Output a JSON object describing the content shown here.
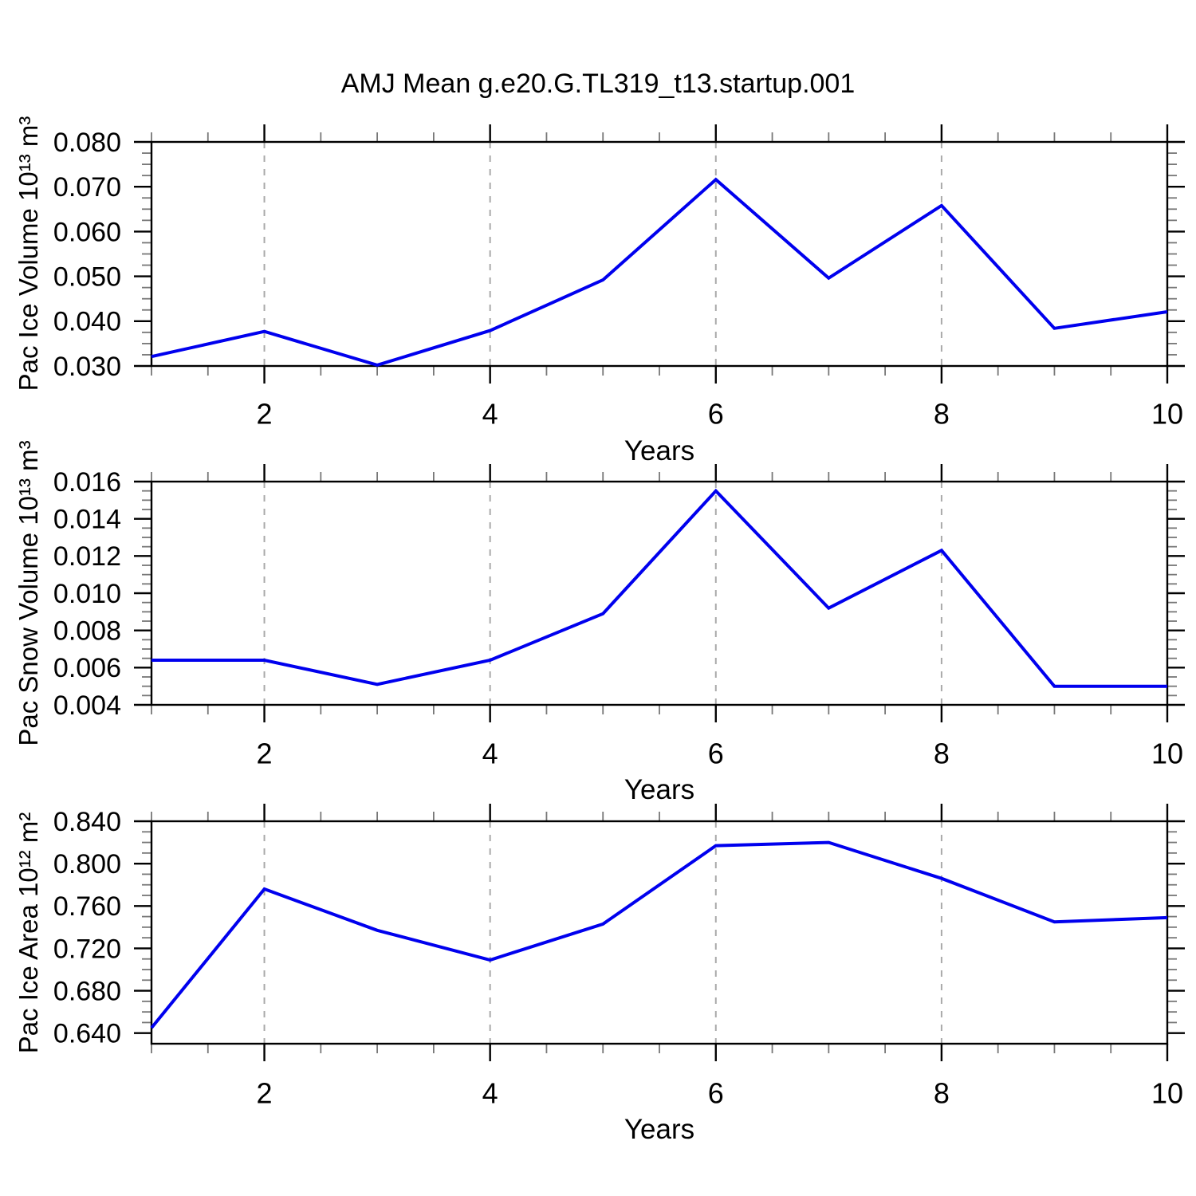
{
  "title": "AMJ Mean g.e20.G.TL319_t13.startup.001",
  "colors": {
    "line": "#0000EE",
    "grid": "#A9A9A9",
    "axis": "#000000",
    "minor_tick": "#777777"
  },
  "chart_data": [
    {
      "type": "line",
      "name": "pac-ice-volume",
      "ylabel": "Pac Ice Volume 10¹³ m³",
      "xlabel": "Years",
      "x": [
        1,
        2,
        3,
        4,
        5,
        6,
        7,
        8,
        9,
        10
      ],
      "values": [
        0.0321,
        0.0377,
        0.0302,
        0.0379,
        0.0492,
        0.0716,
        0.0496,
        0.0658,
        0.0384,
        0.0421
      ],
      "xlim": [
        1,
        10
      ],
      "ylim": [
        0.03,
        0.08
      ],
      "yticks": [
        "0.080",
        "0.070",
        "0.060",
        "0.050",
        "0.040",
        "0.030"
      ],
      "y_minor_step": 0.0025,
      "xticks": [
        2,
        4,
        6,
        8,
        10
      ],
      "xtick_labels": [
        "2",
        "4",
        "6",
        "8",
        "10"
      ],
      "x_minor_step": 0.5,
      "grid_x": [
        2,
        4,
        6,
        8
      ],
      "grid_style": "vertical-dashed",
      "legend": "none"
    },
    {
      "type": "line",
      "name": "pac-snow-volume",
      "ylabel": "Pac Snow Volume 10¹³ m³",
      "xlabel": "Years",
      "x": [
        1,
        2,
        3,
        4,
        5,
        6,
        7,
        8,
        9,
        10
      ],
      "values": [
        0.0064,
        0.0064,
        0.0051,
        0.0064,
        0.0089,
        0.0155,
        0.0092,
        0.0123,
        0.005,
        0.005
      ],
      "xlim": [
        1,
        10
      ],
      "ylim": [
        0.004,
        0.016
      ],
      "yticks": [
        "0.016",
        "0.014",
        "0.012",
        "0.010",
        "0.008",
        "0.006",
        "0.004"
      ],
      "y_minor_step": 0.0005,
      "xticks": [
        2,
        4,
        6,
        8,
        10
      ],
      "xtick_labels": [
        "2",
        "4",
        "6",
        "8",
        "10"
      ],
      "x_minor_step": 0.5,
      "grid_x": [
        2,
        4,
        6,
        8
      ],
      "grid_style": "vertical-dashed",
      "legend": "none"
    },
    {
      "type": "line",
      "name": "pac-ice-area",
      "ylabel": "Pac Ice Area 10¹² m²",
      "xlabel": "Years",
      "x": [
        1,
        2,
        3,
        4,
        5,
        6,
        7,
        8,
        9,
        10
      ],
      "values": [
        0.645,
        0.776,
        0.737,
        0.709,
        0.743,
        0.817,
        0.82,
        0.786,
        0.745,
        0.749
      ],
      "xlim": [
        1,
        10
      ],
      "ylim": [
        0.63,
        0.84
      ],
      "yticks": [
        "0.840",
        "0.800",
        "0.760",
        "0.720",
        "0.680",
        "0.640"
      ],
      "y_minor_step": 0.01,
      "xticks": [
        2,
        4,
        6,
        8,
        10
      ],
      "xtick_labels": [
        "2",
        "4",
        "6",
        "8",
        "10"
      ],
      "x_minor_step": 0.5,
      "grid_x": [
        2,
        4,
        6,
        8
      ],
      "grid_style": "vertical-dashed",
      "legend": "none"
    }
  ]
}
